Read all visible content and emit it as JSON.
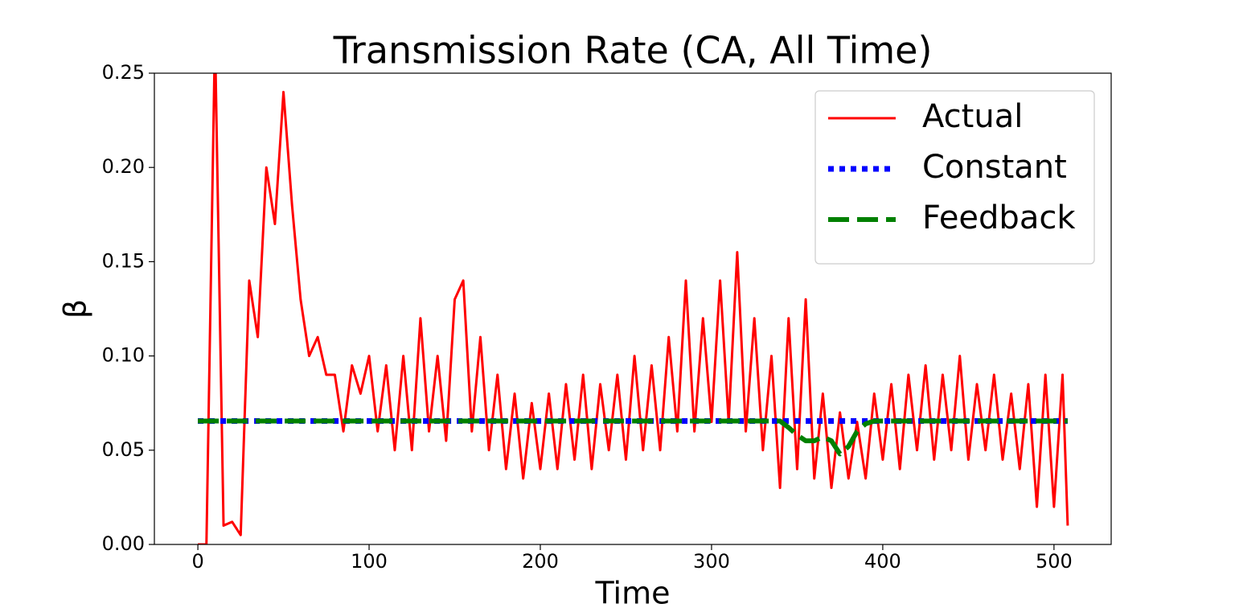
{
  "chart_data": {
    "type": "line",
    "title": "Transmission Rate (CA, All Time)",
    "xlabel": "Time",
    "ylabel": "β",
    "xlim": [
      -25.4,
      533.4
    ],
    "xticks": [
      0,
      100,
      200,
      300,
      400,
      500
    ],
    "ylim": [
      0,
      0.25
    ],
    "yticks": [
      {
        "value": 0,
        "label": "0.00"
      },
      {
        "value": 0.05,
        "label": "0.05"
      },
      {
        "value": 0.1,
        "label": "0.10"
      },
      {
        "value": 0.15,
        "label": "0.15"
      },
      {
        "value": 0.2,
        "label": "0.20"
      },
      {
        "value": 0.25,
        "label": "0.25"
      }
    ],
    "legend": "upper right",
    "series": [
      {
        "name": "Actual",
        "color": "#ff0000",
        "linestyle": "solid",
        "x": [
          0,
          5,
          10,
          15,
          20,
          25,
          30,
          35,
          40,
          45,
          50,
          55,
          60,
          65,
          70,
          75,
          80,
          85,
          90,
          95,
          100,
          105,
          110,
          115,
          120,
          125,
          130,
          135,
          140,
          145,
          150,
          155,
          160,
          165,
          170,
          175,
          180,
          185,
          190,
          195,
          200,
          205,
          210,
          215,
          220,
          225,
          230,
          235,
          240,
          245,
          250,
          255,
          260,
          265,
          270,
          275,
          280,
          285,
          290,
          295,
          300,
          305,
          310,
          315,
          320,
          325,
          330,
          335,
          340,
          345,
          350,
          355,
          360,
          365,
          370,
          375,
          380,
          385,
          390,
          395,
          400,
          405,
          410,
          415,
          420,
          425,
          430,
          435,
          440,
          445,
          450,
          455,
          460,
          465,
          470,
          475,
          480,
          485,
          490,
          495,
          500,
          505,
          508
        ],
        "values": [
          0,
          0,
          0.27,
          0.01,
          0.012,
          0.005,
          0.14,
          0.11,
          0.2,
          0.17,
          0.24,
          0.18,
          0.13,
          0.1,
          0.11,
          0.09,
          0.09,
          0.06,
          0.095,
          0.08,
          0.1,
          0.06,
          0.095,
          0.05,
          0.1,
          0.05,
          0.12,
          0.06,
          0.1,
          0.055,
          0.13,
          0.14,
          0.06,
          0.11,
          0.05,
          0.09,
          0.04,
          0.08,
          0.035,
          0.075,
          0.04,
          0.08,
          0.04,
          0.085,
          0.045,
          0.09,
          0.04,
          0.085,
          0.05,
          0.09,
          0.045,
          0.1,
          0.05,
          0.095,
          0.05,
          0.11,
          0.06,
          0.14,
          0.06,
          0.12,
          0.065,
          0.14,
          0.065,
          0.155,
          0.06,
          0.12,
          0.05,
          0.1,
          0.03,
          0.12,
          0.04,
          0.13,
          0.035,
          0.08,
          0.03,
          0.07,
          0.035,
          0.065,
          0.035,
          0.08,
          0.045,
          0.085,
          0.04,
          0.09,
          0.05,
          0.095,
          0.045,
          0.09,
          0.05,
          0.1,
          0.045,
          0.085,
          0.05,
          0.09,
          0.045,
          0.08,
          0.04,
          0.085,
          0.02,
          0.09,
          0.02,
          0.09,
          0.01
        ]
      },
      {
        "name": "Constant",
        "color": "#0000ff",
        "linestyle": "dotted",
        "x": [
          0,
          508
        ],
        "values": [
          0.0655,
          0.0655
        ]
      },
      {
        "name": "Feedback",
        "color": "#008000",
        "linestyle": "dashed",
        "x": [
          0,
          340,
          345,
          350,
          355,
          360,
          365,
          370,
          375,
          380,
          385,
          390,
          395,
          508
        ],
        "values": [
          0.0655,
          0.0655,
          0.062,
          0.058,
          0.055,
          0.055,
          0.057,
          0.055,
          0.048,
          0.052,
          0.06,
          0.064,
          0.0655,
          0.0655
        ]
      }
    ]
  }
}
